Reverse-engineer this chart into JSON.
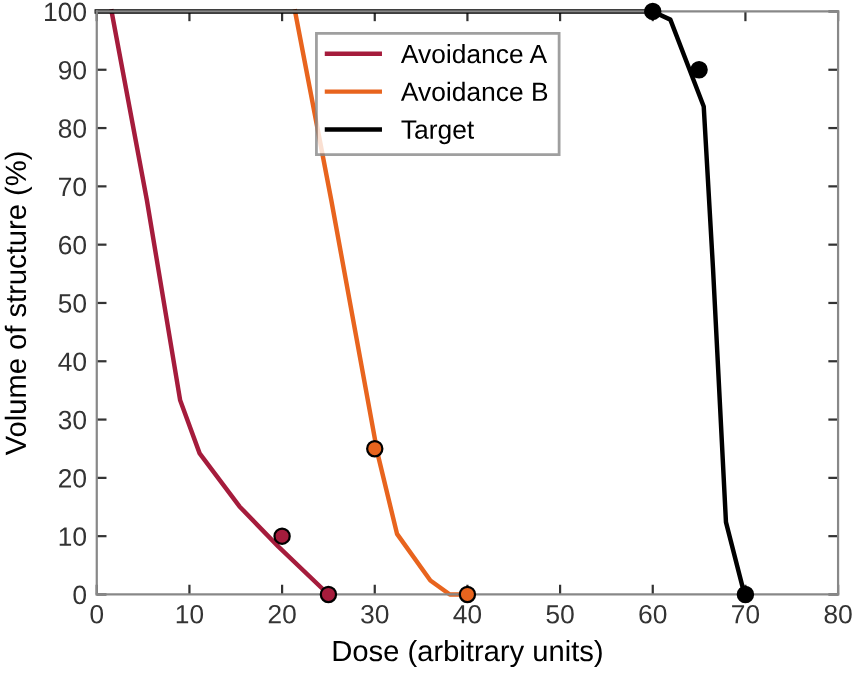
{
  "chart_data": {
    "type": "line",
    "xlabel": "Dose (arbitrary units)",
    "ylabel": "Volume of structure (%)",
    "xlim": [
      0,
      80
    ],
    "ylim": [
      0,
      100
    ],
    "xticks": [
      0,
      10,
      20,
      30,
      40,
      50,
      60,
      70,
      80
    ],
    "yticks": [
      0,
      10,
      20,
      30,
      40,
      50,
      60,
      70,
      80,
      90,
      100
    ],
    "grid": false,
    "legend": "top",
    "marker": "none",
    "line_style": "solid",
    "series": [
      {
        "name": "Avoidance A",
        "color": "#a51c3c",
        "x": [
          1.6,
          5.4,
          9.0,
          11.1,
          15.4,
          19.6,
          25
        ],
        "values": [
          100,
          67.7,
          33.3,
          24.2,
          15.1,
          8.2,
          0
        ]
      },
      {
        "name": "Avoidance B",
        "color": "#e8641e",
        "x": [
          21.4,
          25.3,
          30.3,
          32.4,
          36.0,
          38.1,
          40
        ],
        "values": [
          100,
          67.7,
          24.2,
          10.4,
          2.4,
          0,
          0
        ]
      },
      {
        "name": "Target",
        "color": "#000000",
        "x": [
          0,
          60,
          61.9,
          65.5,
          66.5,
          67.9,
          69.9
        ],
        "values": [
          100,
          100,
          98.6,
          83.7,
          56,
          12.4,
          0
        ]
      },
      {
        "type": "scatter",
        "marker": "circle",
        "color": "#a51c3c",
        "x": [
          20,
          25
        ],
        "values": [
          10,
          0
        ]
      },
      {
        "type": "scatter",
        "marker": "circle",
        "color": "#e8641e",
        "x": [
          30,
          40
        ],
        "values": [
          25,
          0
        ]
      },
      {
        "type": "scatter",
        "marker": "circle",
        "color": "#000000",
        "x": [
          60,
          65,
          70
        ],
        "values": [
          100,
          90,
          0
        ]
      }
    ]
  }
}
